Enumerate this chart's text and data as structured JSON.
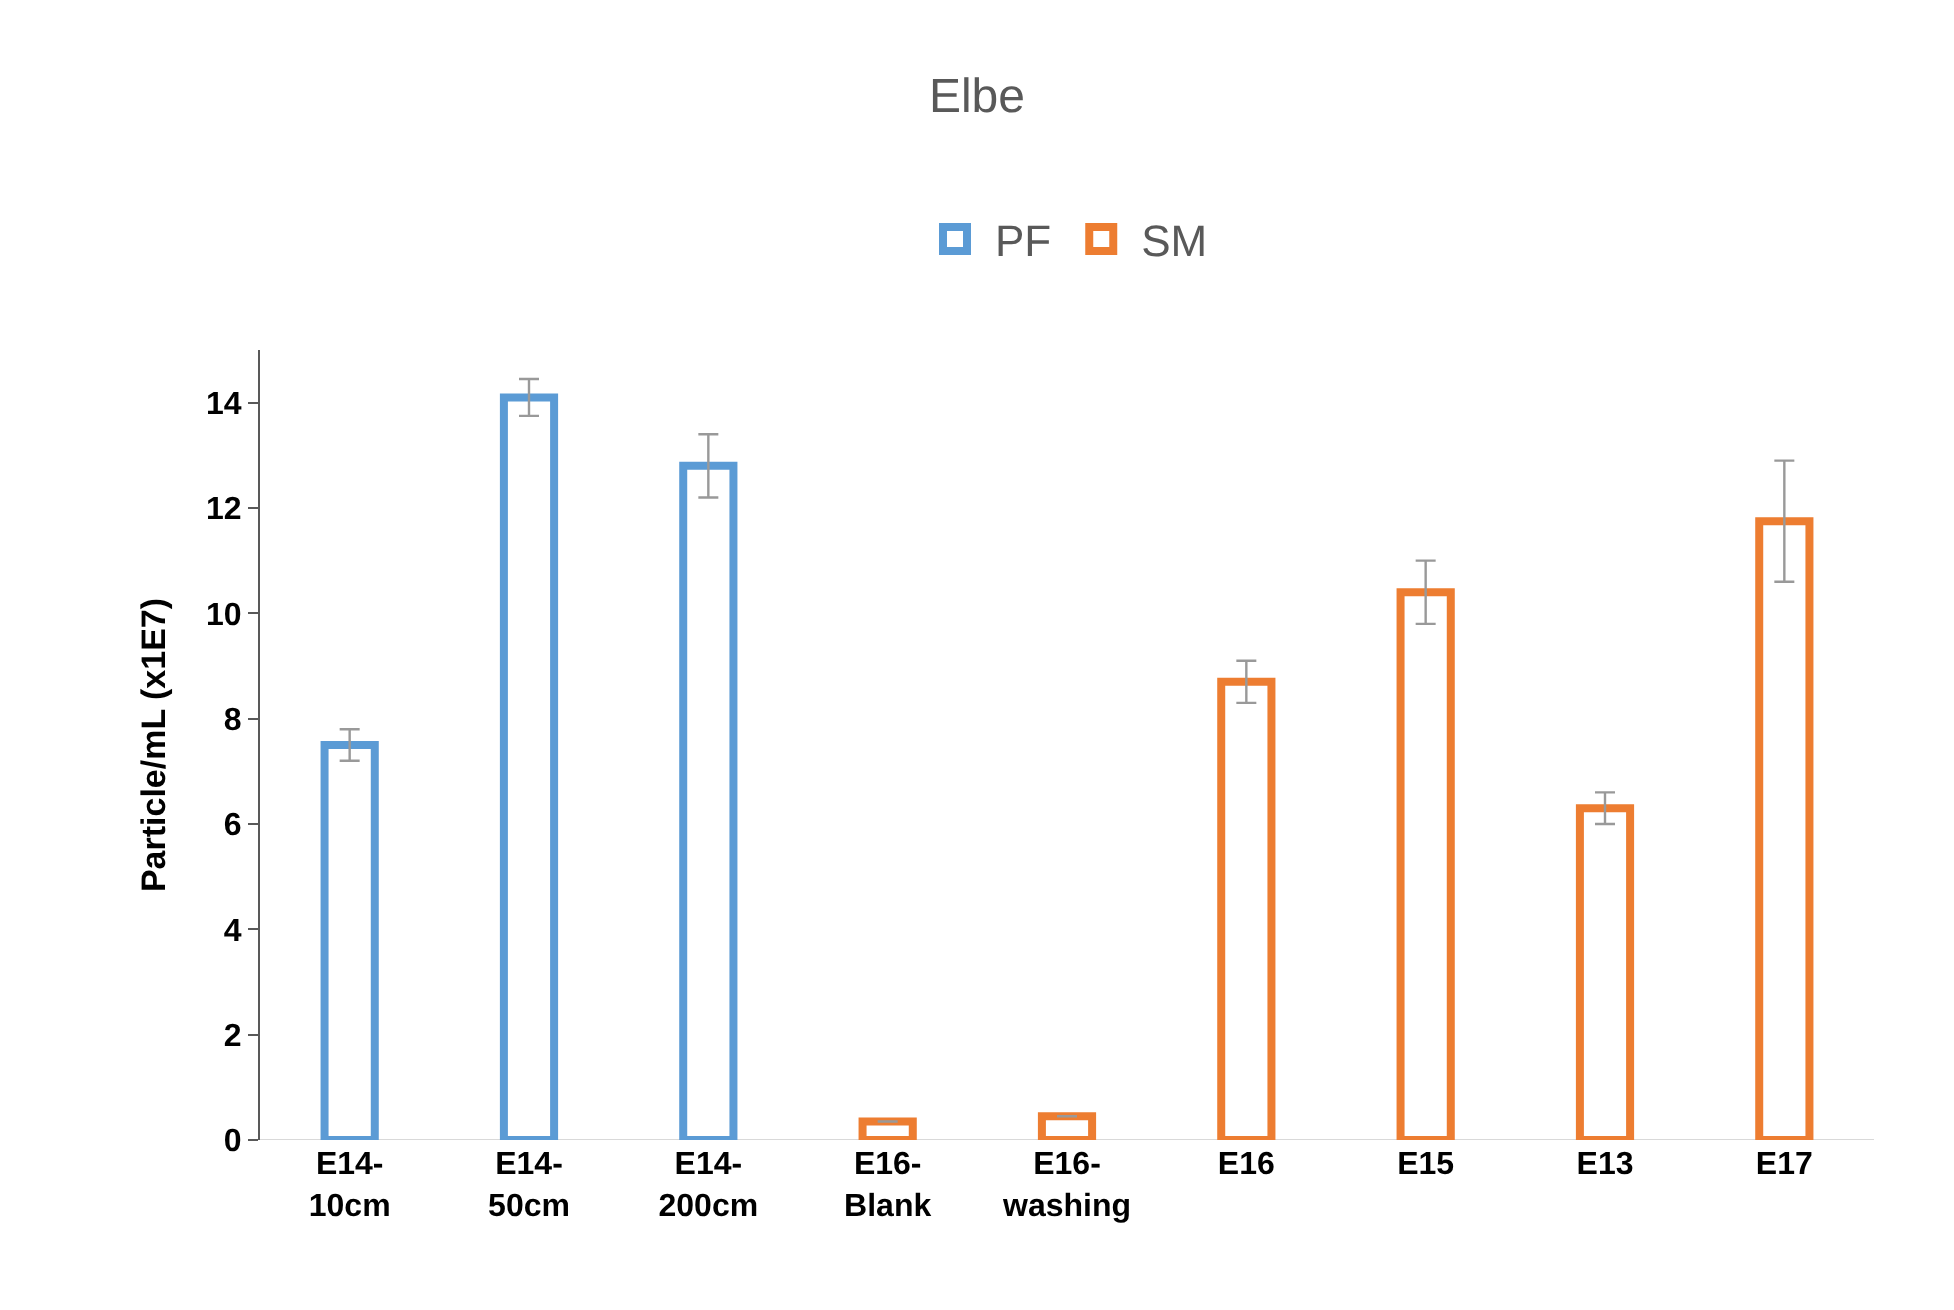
{
  "chart_data": {
    "type": "bar",
    "title": "Elbe",
    "ylabel": "Particle/mL (x1E7)",
    "categories": [
      "E14-\n10cm",
      "E14-\n50cm",
      "E14-\n200cm",
      "E16-\nBlank",
      "E16-\nwashing",
      "E16",
      "E15",
      "E13",
      "E17"
    ],
    "series": [
      {
        "name": "PF",
        "color": "#5b9bd5",
        "values": [
          7.5,
          14.1,
          12.8,
          null,
          null,
          null,
          null,
          null,
          null
        ],
        "errors": [
          0.3,
          0.35,
          0.6,
          null,
          null,
          null,
          null,
          null,
          null
        ]
      },
      {
        "name": "SM",
        "color": "#ed7d31",
        "values": [
          null,
          null,
          null,
          0.35,
          0.45,
          8.7,
          10.4,
          6.3,
          11.75
        ],
        "errors": [
          null,
          null,
          null,
          null,
          null,
          0.4,
          0.6,
          0.3,
          1.15
        ]
      }
    ],
    "ylim": [
      0,
      15
    ],
    "yticks": [
      0,
      2,
      4,
      6,
      8,
      10,
      12,
      14
    ],
    "legend": "top"
  }
}
